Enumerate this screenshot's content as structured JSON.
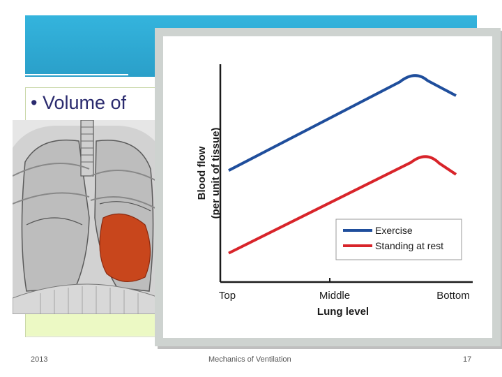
{
  "slide": {
    "bullet_text": "• Volume of",
    "footer_year": "2013",
    "footer_title": "Mechanics of Ventilation",
    "footer_page": "17"
  },
  "colors": {
    "header": "#2ca7d0",
    "exercise": "#1f4e9c",
    "rest": "#d8242a"
  },
  "chart_data": {
    "type": "line",
    "title": "",
    "xlabel": "Lung level",
    "ylabel_line1": "Blood flow",
    "ylabel_line2": "(per unit of tissue)",
    "categories": [
      "Top",
      "Middle",
      "Bottom"
    ],
    "x_range": [
      0,
      1
    ],
    "y_range": [
      0,
      1
    ],
    "legend_position": "right",
    "series": [
      {
        "name": "Exercise",
        "color": "#1f4e9c",
        "points": [
          [
            0,
            0.51
          ],
          [
            0.82,
            1.0
          ],
          [
            1.0,
            0.89
          ]
        ]
      },
      {
        "name": "Standing at rest",
        "color": "#d8242a",
        "points": [
          [
            0,
            0.09
          ],
          [
            0.87,
            0.59
          ],
          [
            1.0,
            0.49
          ]
        ]
      }
    ]
  }
}
